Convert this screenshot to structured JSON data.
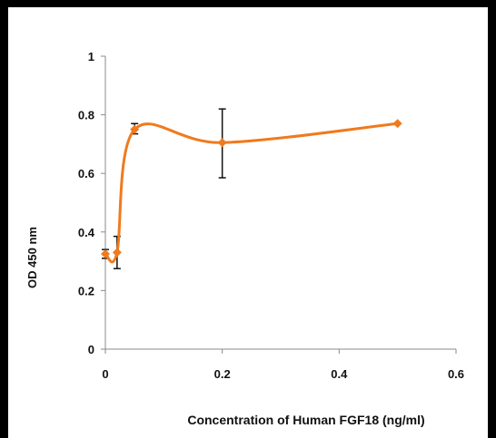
{
  "chart_data": {
    "type": "line",
    "title": "",
    "xlabel": "Concentration of Human FGF18 (ng/ml)",
    "ylabel": "OD 450 nm",
    "xlim": [
      0,
      0.6
    ],
    "ylim": [
      0,
      1
    ],
    "xticks": [
      "0",
      "0.2",
      "0.4",
      "0.6"
    ],
    "yticks": [
      "0",
      "0.2",
      "0.4",
      "0.6",
      "0.8",
      "1"
    ],
    "grid": false,
    "legend": "none",
    "series": [
      {
        "color": "#f07a1e",
        "marker": "diamond",
        "smooth": true,
        "points": [
          {
            "x": 0.0,
            "y": 0.325,
            "err_low": 0.31,
            "err_high": 0.34
          },
          {
            "x": 0.02,
            "y": 0.33,
            "err_low": 0.275,
            "err_high": 0.385
          },
          {
            "x": 0.05,
            "y": 0.75,
            "err_low": 0.735,
            "err_high": 0.77
          },
          {
            "x": 0.2,
            "y": 0.705,
            "err_low": 0.585,
            "err_high": 0.82
          },
          {
            "x": 0.5,
            "y": 0.77,
            "err_low": null,
            "err_high": null
          }
        ]
      }
    ]
  }
}
